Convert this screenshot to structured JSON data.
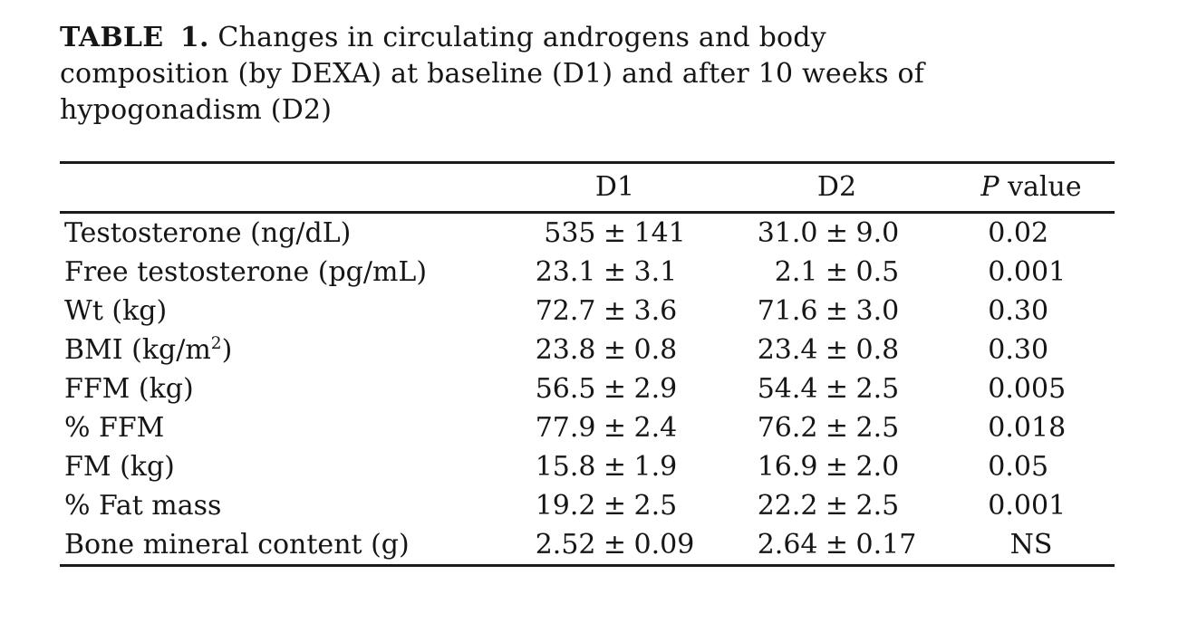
{
  "title": {
    "label": "TABLE 1.",
    "line1": "Changes in circulating androgens and body",
    "line2": "composition (by DEXA) at baseline (D1) and after 10 weeks of",
    "line3": "hypogonadism (D2)"
  },
  "table": {
    "header": {
      "metric": "",
      "d1": "D1",
      "d2": "D2",
      "p_italic": "P",
      "p_rest": " value"
    },
    "rows": [
      {
        "label": "Testosterone (ng/dL)",
        "d1": "535 ± 141",
        "d2": "31.0 ± 9.0",
        "p": "0.02"
      },
      {
        "label": "Free testosterone (pg/mL)",
        "d1": "23.1 ± 3.1",
        "d2": "2.1 ± 0.5",
        "p": "0.001"
      },
      {
        "label": "Wt (kg)",
        "d1": "72.7 ± 3.6",
        "d2": "71.6 ± 3.0",
        "p": "0.30"
      },
      {
        "label": "BMI (kg/m²)",
        "d1": "23.8 ± 0.8",
        "d2": "23.4 ± 0.8",
        "p": "0.30"
      },
      {
        "label": "FFM (kg)",
        "d1": "56.5 ± 2.9",
        "d2": "54.4 ± 2.5",
        "p": "0.005"
      },
      {
        "label": "% FFM",
        "d1": "77.9 ± 2.4",
        "d2": "76.2 ± 2.5",
        "p": "0.018"
      },
      {
        "label": "FM (kg)",
        "d1": "15.8 ± 1.9",
        "d2": "16.9 ± 2.0",
        "p": "0.05"
      },
      {
        "label": "% Fat mass",
        "d1": "19.2 ± 2.5",
        "d2": "22.2 ± 2.5",
        "p": "0.001"
      },
      {
        "label": "Bone mineral content (g)",
        "d1": "2.52 ± 0.09",
        "d2": "2.64 ± 0.17",
        "p": "NS"
      }
    ]
  }
}
